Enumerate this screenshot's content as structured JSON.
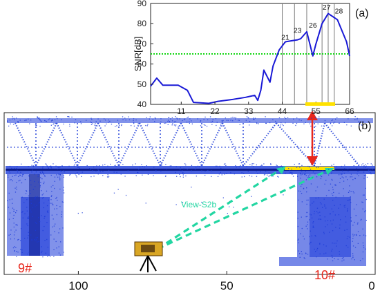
{
  "colors": {
    "snr_line": "#1919d6",
    "threshold_line": "#11d611",
    "points": "#1a39d8",
    "pier_label": "#e8271c",
    "double_arrow": "#e8271c",
    "view_arrows": "#22d6a2",
    "highlight_bar": "#ffe100"
  },
  "chart_data": [
    {
      "panel_label": "(a)",
      "type": "line",
      "ylabel": "SNR[dB]",
      "x_ticks": [
        "11",
        "22",
        "33",
        "44",
        "55",
        "66"
      ],
      "y_ticks": [
        "40",
        "50",
        "60",
        "70",
        "80",
        "90"
      ],
      "xlim": [
        1,
        66
      ],
      "ylim": [
        40,
        90
      ],
      "grid": false,
      "series": [
        {
          "x": [
            1,
            3,
            5,
            10,
            13,
            15,
            20,
            23,
            28,
            32,
            35,
            36,
            37,
            38,
            40,
            41,
            43,
            45,
            47,
            49,
            50,
            52,
            54,
            55,
            57,
            59,
            60,
            62,
            65,
            66
          ],
          "y": [
            49,
            53,
            49.5,
            49.5,
            47,
            41,
            40.5,
            41.5,
            42.5,
            43.5,
            44.5,
            42,
            47,
            57,
            51,
            59,
            67,
            71,
            71.5,
            72,
            72.5,
            76,
            64,
            70,
            80,
            85,
            84,
            82,
            71,
            64
          ]
        },
        {
          "x": [
            1,
            66
          ],
          "y": [
            65,
            65
          ]
        }
      ],
      "vertical_markers": [
        44,
        48,
        52,
        57,
        59,
        61
      ],
      "annotations": [
        {
          "text": "21",
          "x": 45,
          "y": 72
        },
        {
          "text": "23",
          "x": 49,
          "y": 75.5
        },
        {
          "text": "26",
          "x": 54,
          "y": 78
        },
        {
          "text": "27",
          "x": 58.5,
          "y": 87
        },
        {
          "text": "28",
          "x": 62.5,
          "y": 85
        }
      ]
    },
    {
      "panel_label": "(b)",
      "type": "scatter",
      "x_ticks": [
        "100",
        "50",
        "0"
      ],
      "xlim": [
        125,
        0
      ],
      "pier_labels": [
        "9#",
        "10#"
      ],
      "annotation": "View-S2b"
    }
  ]
}
